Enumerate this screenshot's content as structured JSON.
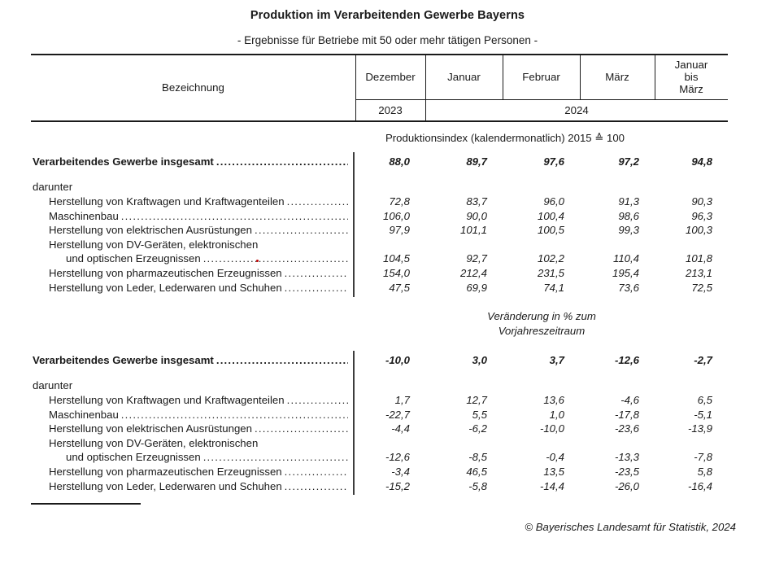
{
  "title": "Produktion im Verarbeitenden Gewerbe Bayerns",
  "subtitle": "- Ergebnisse für Betriebe mit 50 oder mehr tätigen Personen -",
  "header": {
    "label_col": "Bezeichnung",
    "col_dezember": "Dezember",
    "col_januar": "Januar",
    "col_februar": "Februar",
    "col_maerz": "März",
    "col_jan_bis_maerz_line1": "Januar",
    "col_jan_bis_maerz_line2": "bis",
    "col_jan_bis_maerz_line3": "März",
    "year_left": "2023",
    "year_right": "2024"
  },
  "sections": [
    {
      "caption": "Produktionsindex (kalendermonatlich) 2015 ≙ 100",
      "rows": [
        {
          "label": "Verarbeitendes Gewerbe insgesamt",
          "style": "bold",
          "dots": true,
          "values": [
            "88,0",
            "89,7",
            "97,6",
            "97,2",
            "94,8"
          ]
        },
        {
          "label": "darunter",
          "style": "plain",
          "dots": false,
          "values": []
        },
        {
          "label": "Herstellung von Kraftwagen und Kraftwagenteilen",
          "style": "sub",
          "dots": true,
          "values": [
            "72,8",
            "83,7",
            "96,0",
            "91,3",
            "90,3"
          ]
        },
        {
          "label": "Maschinenbau",
          "style": "sub",
          "dots": true,
          "values": [
            "106,0",
            "90,0",
            "100,4",
            "98,6",
            "96,3"
          ]
        },
        {
          "label": "Herstellung von elektrischen Ausrüstungen",
          "style": "sub",
          "dots": true,
          "values": [
            "97,9",
            "101,1",
            "100,5",
            "99,3",
            "100,3"
          ]
        },
        {
          "label": "Herstellung von DV-Geräten, elektronischen",
          "style": "sub",
          "dots": false,
          "values": []
        },
        {
          "label": "und optischen Erzeugnissen",
          "style": "sub2",
          "dots": true,
          "values": [
            "104,5",
            "92,7",
            "102,2",
            "110,4",
            "101,8"
          ]
        },
        {
          "label": "Herstellung von pharmazeutischen Erzeugnissen",
          "style": "sub",
          "dots": true,
          "values": [
            "154,0",
            "212,4",
            "231,5",
            "195,4",
            "213,1"
          ]
        },
        {
          "label": "Herstellung von Leder, Lederwaren und Schuhen",
          "style": "sub",
          "dots": true,
          "values": [
            "47,5",
            "69,9",
            "74,1",
            "73,6",
            "72,5"
          ]
        }
      ]
    },
    {
      "caption_line1": "Veränderung in % zum",
      "caption_line2": "Vorjahreszeitraum",
      "rows": [
        {
          "label": "Verarbeitendes Gewerbe insgesamt",
          "style": "bold",
          "dots": true,
          "values": [
            "-10,0",
            "3,0",
            "3,7",
            "-12,6",
            "-2,7"
          ]
        },
        {
          "label": "darunter",
          "style": "plain",
          "dots": false,
          "values": []
        },
        {
          "label": "Herstellung von Kraftwagen und Kraftwagenteilen",
          "style": "sub",
          "dots": true,
          "values": [
            "1,7",
            "12,7",
            "13,6",
            "-4,6",
            "6,5"
          ]
        },
        {
          "label": "Maschinenbau",
          "style": "sub",
          "dots": true,
          "values": [
            "-22,7",
            "5,5",
            "1,0",
            "-17,8",
            "-5,1"
          ]
        },
        {
          "label": "Herstellung von elektrischen Ausrüstungen",
          "style": "sub",
          "dots": true,
          "values": [
            "-4,4",
            "-6,2",
            "-10,0",
            "-23,6",
            "-13,9"
          ]
        },
        {
          "label": "Herstellung von DV-Geräten, elektronischen",
          "style": "sub",
          "dots": false,
          "values": []
        },
        {
          "label": "und optischen Erzeugnissen",
          "style": "sub2",
          "dots": true,
          "values": [
            "-12,6",
            "-8,5",
            "-0,4",
            "-13,3",
            "-7,8"
          ]
        },
        {
          "label": "Herstellung von pharmazeutischen Erzeugnissen",
          "style": "sub",
          "dots": true,
          "values": [
            "-3,4",
            "46,5",
            "13,5",
            "-23,5",
            "5,8"
          ]
        },
        {
          "label": "Herstellung von Leder, Lederwaren und Schuhen",
          "style": "sub",
          "dots": true,
          "values": [
            "-15,2",
            "-5,8",
            "-14,4",
            "-26,0",
            "-16,4"
          ]
        }
      ]
    }
  ],
  "footer": {
    "copyright": "©  Bayerisches Landesamt für Statistik, 2024"
  }
}
